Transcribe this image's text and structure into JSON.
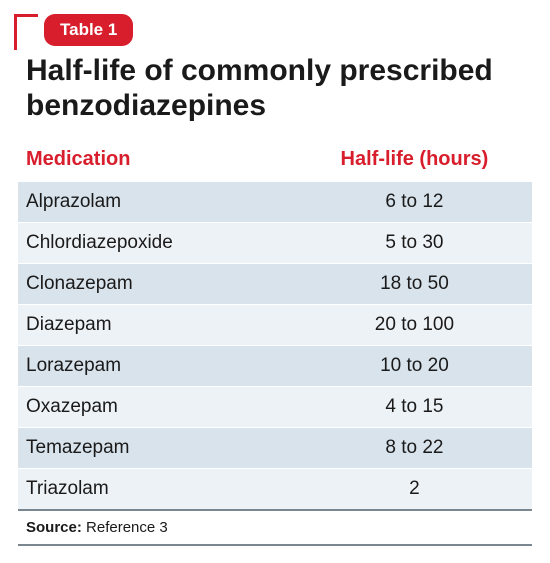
{
  "badge": "Table 1",
  "title": "Half-life of commonly prescribed benzodiazepines",
  "colors": {
    "accent": "#d81e2c",
    "row_odd_bg": "#d8e3ec",
    "row_even_bg": "#edf2f6",
    "rule": "#7a8790",
    "text": "#1a1a1a",
    "background": "#ffffff"
  },
  "typography": {
    "title_fontsize": 30,
    "title_weight": "bold",
    "header_fontsize": 20,
    "header_weight": "bold",
    "body_fontsize": 19,
    "source_fontsize": 15,
    "badge_fontsize": 17
  },
  "table": {
    "type": "table",
    "columns": [
      {
        "label": "Medication",
        "align": "left",
        "width_pct": 56
      },
      {
        "label": "Half-life (hours)",
        "align": "center",
        "width_pct": 44
      }
    ],
    "rows": [
      {
        "medication": "Alprazolam",
        "half_life": "6 to 12"
      },
      {
        "medication": "Chlordiazepoxide",
        "half_life": "5 to 30"
      },
      {
        "medication": "Clonazepam",
        "half_life": "18 to 50"
      },
      {
        "medication": "Diazepam",
        "half_life": "20 to 100"
      },
      {
        "medication": "Lorazepam",
        "half_life": "10 to 20"
      },
      {
        "medication": "Oxazepam",
        "half_life": "4 to 15"
      },
      {
        "medication": "Temazepam",
        "half_life": "8 to 22"
      },
      {
        "medication": "Triazolam",
        "half_life": "2"
      }
    ]
  },
  "source": {
    "label": "Source:",
    "text": "Reference 3"
  }
}
